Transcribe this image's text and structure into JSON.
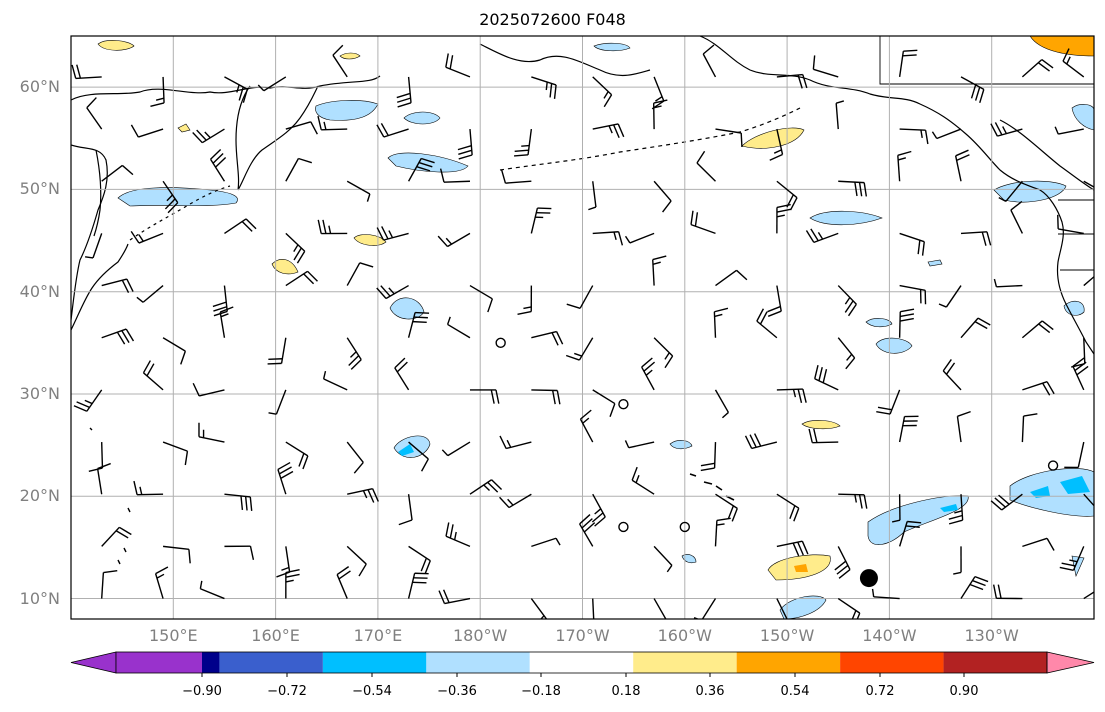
{
  "title": "2025072600 F048",
  "lat_labels": [
    "60°N",
    "50°N",
    "40°N",
    "30°N",
    "20°N",
    "10°N"
  ],
  "lon_labels": [
    "150°E",
    "160°E",
    "170°E",
    "180°W",
    "170°W",
    "160°W",
    "150°W",
    "140°W",
    "130°W"
  ],
  "colorbar": {
    "ticks": [
      "−0.90",
      "−0.72",
      "−0.54",
      "−0.36",
      "−0.18",
      "0.18",
      "0.36",
      "0.54",
      "0.72",
      "0.90"
    ],
    "colors": [
      "#9932cc",
      "#00008b",
      "#3a5fcd",
      "#00bfff",
      "#b0e0ff",
      "#ffffff",
      "#ffec8b",
      "#ffa500",
      "#ff4500",
      "#b22222",
      "#ff88aa"
    ]
  },
  "colors": {
    "light_blue": "#b0e0ff",
    "mid_blue": "#00bfff",
    "light_yellow": "#ffec8b",
    "orange": "#ffa500",
    "grid": "#b0b0b0",
    "label_gray": "#808080"
  },
  "chart_data": {
    "type": "map",
    "extent": {
      "lon": [
        140,
        240
      ],
      "lat": [
        8,
        65
      ]
    },
    "grid": true,
    "gridlines": {
      "lon_step_deg": 10,
      "lat_step_deg": 10
    },
    "wind_barbs": true,
    "calm_markers": [
      {
        "lon": -178,
        "lat": 35
      },
      {
        "lon": -166,
        "lat": 29
      },
      {
        "lon": -166,
        "lat": 17
      },
      {
        "lon": -160,
        "lat": 17
      },
      {
        "lon": -124,
        "lat": 23
      }
    ],
    "dot_markers": [
      {
        "lon": -142,
        "lat": 12
      }
    ],
    "shaded_regions": [
      {
        "lon": 145,
        "lat": 49,
        "level": "-0.36"
      },
      {
        "lon": 157,
        "lat": 49,
        "level": "-0.36"
      },
      {
        "lon": 172,
        "lat": 58,
        "level": "-0.36"
      },
      {
        "lon": 175,
        "lat": 57,
        "level": "-0.36"
      },
      {
        "lon": 174,
        "lat": 52,
        "level": "-0.36"
      },
      {
        "lon": 178,
        "lat": 38,
        "level": "-0.36"
      },
      {
        "lon": 180,
        "lat": 24,
        "level": "-0.54"
      },
      {
        "lon": -148,
        "lat": 47,
        "level": "-0.36"
      },
      {
        "lon": -138,
        "lat": 34,
        "level": "-0.36"
      },
      {
        "lon": -138,
        "lat": 18,
        "level": "-0.36"
      },
      {
        "lon": -121,
        "lat": 21,
        "level": "-0.54"
      },
      {
        "lon": -125,
        "lat": 49,
        "level": "-0.36"
      },
      {
        "lon": -153,
        "lat": 12,
        "level": "0.36"
      },
      {
        "lon": 150,
        "lat": 64,
        "level": "0.36"
      },
      {
        "lon": 170,
        "lat": 44,
        "level": "0.36"
      },
      {
        "lon": 164,
        "lat": 42,
        "level": "0.36"
      },
      {
        "lon": -150,
        "lat": 54,
        "level": "0.36"
      },
      {
        "lon": -122,
        "lat": 64,
        "level": "0.54"
      }
    ]
  }
}
